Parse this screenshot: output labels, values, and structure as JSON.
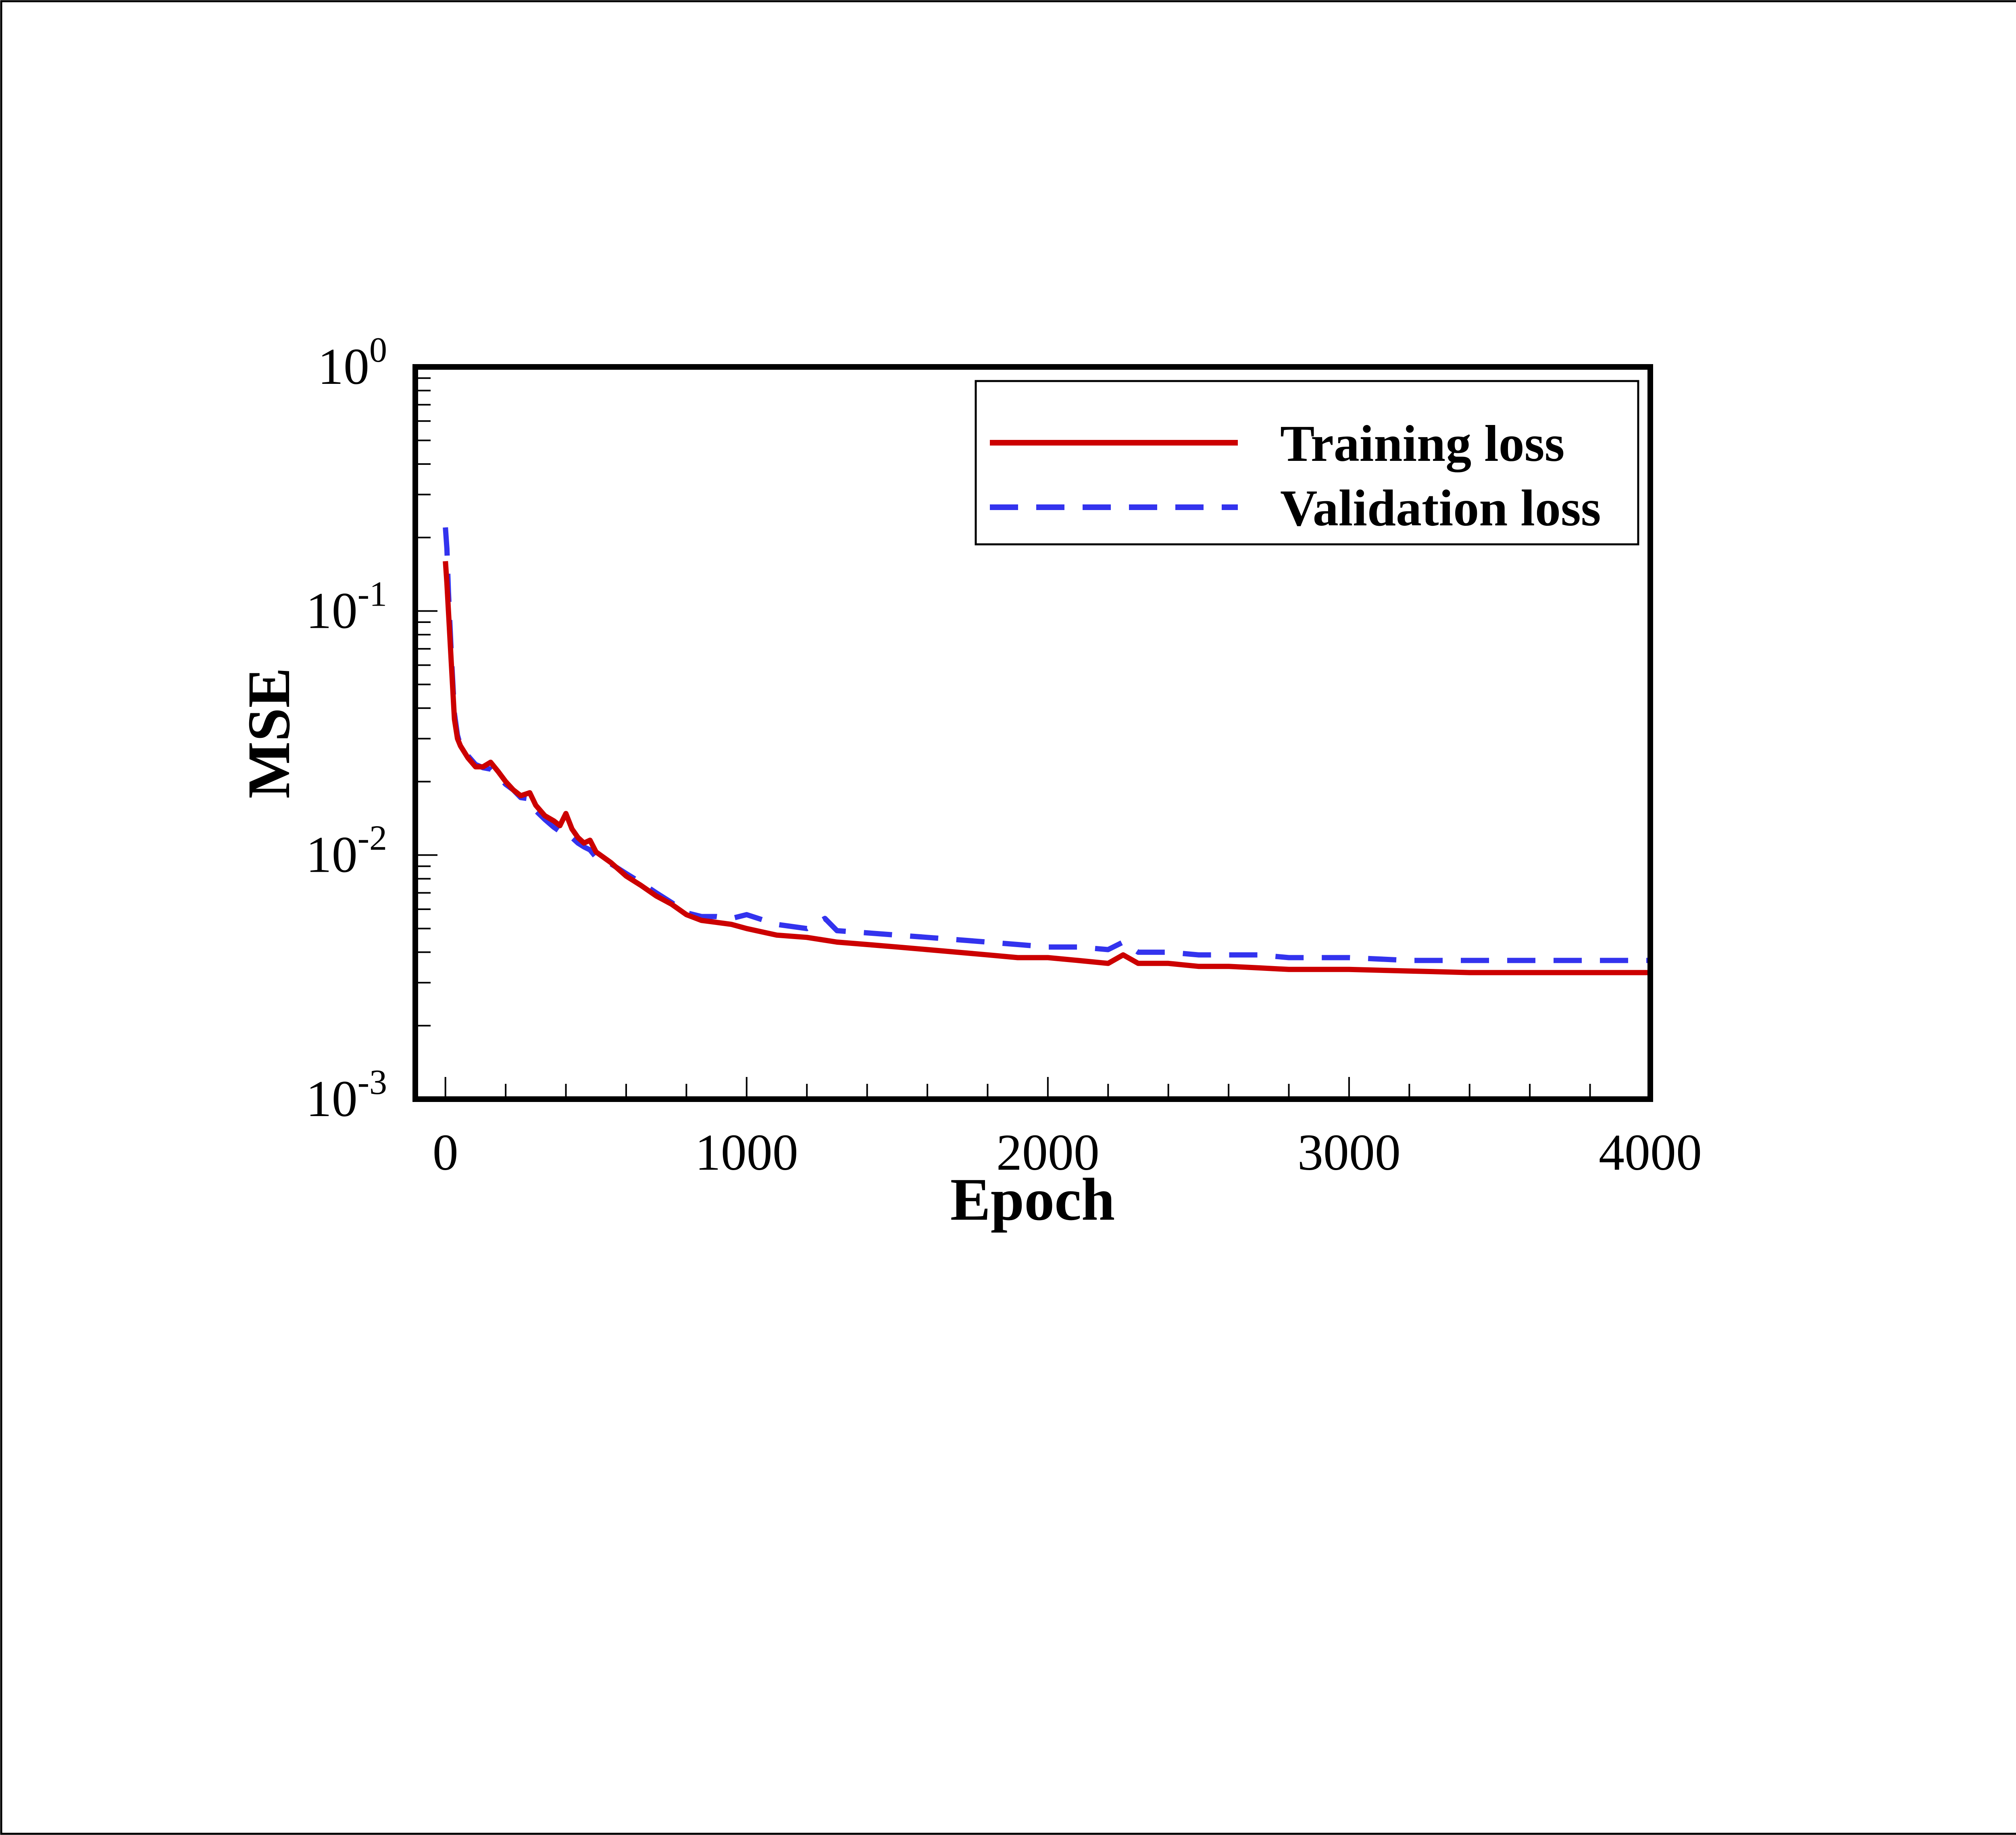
{
  "chart_data": {
    "type": "line",
    "xlabel": "Epoch",
    "ylabel": "MSE",
    "xlim": [
      -100,
      4000
    ],
    "ylim": [
      0.001,
      1
    ],
    "yscale": "log",
    "grid": false,
    "legend_position": "top-right",
    "x_ticks": [
      0,
      1000,
      2000,
      3000,
      4000
    ],
    "x_tick_labels": [
      "0",
      "1000",
      "2000",
      "3000",
      "4000"
    ],
    "y_ticks": [
      {
        "value": 0.001,
        "base": "10",
        "exp": "-3"
      },
      {
        "value": 0.01,
        "base": "10",
        "exp": "-2"
      },
      {
        "value": 0.1,
        "base": "10",
        "exp": "-1"
      },
      {
        "value": 1,
        "base": "10",
        "exp": "0"
      }
    ],
    "series": [
      {
        "name": "Training loss",
        "color": "#cc0000",
        "style": "solid",
        "x": [
          0,
          5,
          10,
          20,
          30,
          40,
          50,
          75,
          100,
          125,
          150,
          175,
          200,
          225,
          250,
          280,
          300,
          330,
          360,
          380,
          400,
          420,
          440,
          460,
          480,
          500,
          550,
          600,
          650,
          700,
          750,
          800,
          850,
          900,
          950,
          1000,
          1100,
          1200,
          1300,
          1400,
          1500,
          1600,
          1700,
          1800,
          1900,
          2000,
          2100,
          2200,
          2250,
          2300,
          2400,
          2500,
          2600,
          2700,
          2800,
          2900,
          3000,
          3200,
          3400,
          3600,
          3800,
          4000
        ],
        "y": [
          0.16,
          0.13,
          0.1,
          0.06,
          0.036,
          0.03,
          0.028,
          0.025,
          0.023,
          0.023,
          0.024,
          0.022,
          0.02,
          0.0185,
          0.0175,
          0.018,
          0.016,
          0.0145,
          0.0138,
          0.0132,
          0.0148,
          0.0128,
          0.0118,
          0.0112,
          0.0115,
          0.0103,
          0.0093,
          0.0082,
          0.0075,
          0.0068,
          0.0063,
          0.0057,
          0.0054,
          0.0053,
          0.0052,
          0.005,
          0.0047,
          0.0046,
          0.0044,
          0.0043,
          0.0042,
          0.0041,
          0.004,
          0.0039,
          0.0038,
          0.0038,
          0.0037,
          0.0036,
          0.0039,
          0.0036,
          0.0036,
          0.0035,
          0.0035,
          0.00345,
          0.0034,
          0.0034,
          0.0034,
          0.00335,
          0.0033,
          0.0033,
          0.0033,
          0.0033
        ]
      },
      {
        "name": "Validation loss",
        "color": "#3333ee",
        "style": "dashed",
        "x": [
          0,
          5,
          10,
          20,
          30,
          40,
          50,
          75,
          100,
          125,
          150,
          175,
          200,
          225,
          250,
          280,
          300,
          330,
          360,
          380,
          400,
          420,
          440,
          460,
          480,
          500,
          550,
          600,
          650,
          700,
          750,
          800,
          850,
          900,
          950,
          1000,
          1100,
          1200,
          1260,
          1300,
          1400,
          1500,
          1600,
          1700,
          1800,
          1900,
          2000,
          2100,
          2200,
          2250,
          2300,
          2400,
          2500,
          2600,
          2700,
          2800,
          2900,
          3000,
          3200,
          3400,
          3600,
          3800,
          4000
        ],
        "y": [
          0.22,
          0.18,
          0.12,
          0.065,
          0.038,
          0.031,
          0.028,
          0.0255,
          0.0235,
          0.0228,
          0.0225,
          0.021,
          0.0195,
          0.0185,
          0.0172,
          0.017,
          0.0152,
          0.014,
          0.013,
          0.0125,
          0.0125,
          0.0118,
          0.0112,
          0.0108,
          0.0105,
          0.0098,
          0.0092,
          0.0084,
          0.0077,
          0.007,
          0.0064,
          0.0058,
          0.0056,
          0.0056,
          0.0055,
          0.0057,
          0.0052,
          0.005,
          0.0055,
          0.0049,
          0.0048,
          0.0047,
          0.0046,
          0.0045,
          0.0044,
          0.0043,
          0.0042,
          0.0042,
          0.0041,
          0.0044,
          0.004,
          0.004,
          0.0039,
          0.0039,
          0.0039,
          0.0038,
          0.0038,
          0.0038,
          0.0037,
          0.0037,
          0.0037,
          0.0037,
          0.0037
        ]
      }
    ]
  }
}
